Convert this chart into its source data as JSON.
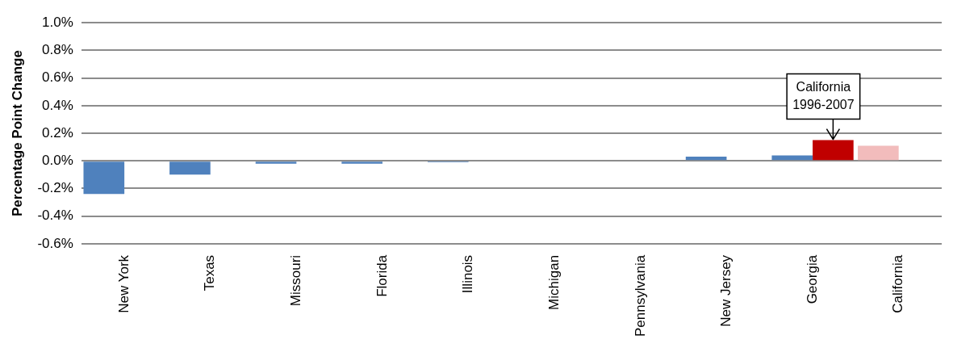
{
  "chart_data": {
    "type": "bar",
    "ylabel": "Percentage Point Change",
    "categories": [
      "New York",
      "Texas",
      "Missouri",
      "Florida",
      "Illinois",
      "Michigan",
      "Pennsylvania",
      "New Jersey",
      "Georgia",
      "California"
    ],
    "series": [
      {
        "colors": [
          "#4f81bd",
          "#4f81bd",
          "#4f81bd",
          "#4f81bd",
          "#4f81bd",
          "#4f81bd",
          "#4f81bd",
          "#4f81bd",
          "#4f81bd",
          "#f2bcbc"
        ],
        "values": [
          -0.24,
          -0.1,
          -0.02,
          -0.02,
          -0.01,
          0,
          0,
          0.03,
          0.04,
          0.11
        ]
      },
      {
        "color": "#c00000",
        "values": [
          null,
          null,
          null,
          null,
          null,
          null,
          null,
          null,
          0.15,
          null
        ]
      }
    ],
    "ylim": [
      -0.6,
      1.0
    ],
    "yticks": [
      {
        "value": -0.6,
        "label": "-0.6%"
      },
      {
        "value": -0.4,
        "label": "-0.4%"
      },
      {
        "value": -0.2,
        "label": "-0.2%"
      },
      {
        "value": 0,
        "label": "0.0%"
      },
      {
        "value": 0.2,
        "label": "0.2%"
      },
      {
        "value": 0.4,
        "label": "0.4%"
      },
      {
        "value": 0.6,
        "label": "0.6%"
      },
      {
        "value": 0.8,
        "label": "0.8%"
      },
      {
        "value": 1.0,
        "label": "1.0%"
      }
    ],
    "grid": "y",
    "legend": false,
    "annotations": [
      {
        "text": "California\n1996-2007",
        "x": "Georgia",
        "y": 0.15
      }
    ]
  }
}
